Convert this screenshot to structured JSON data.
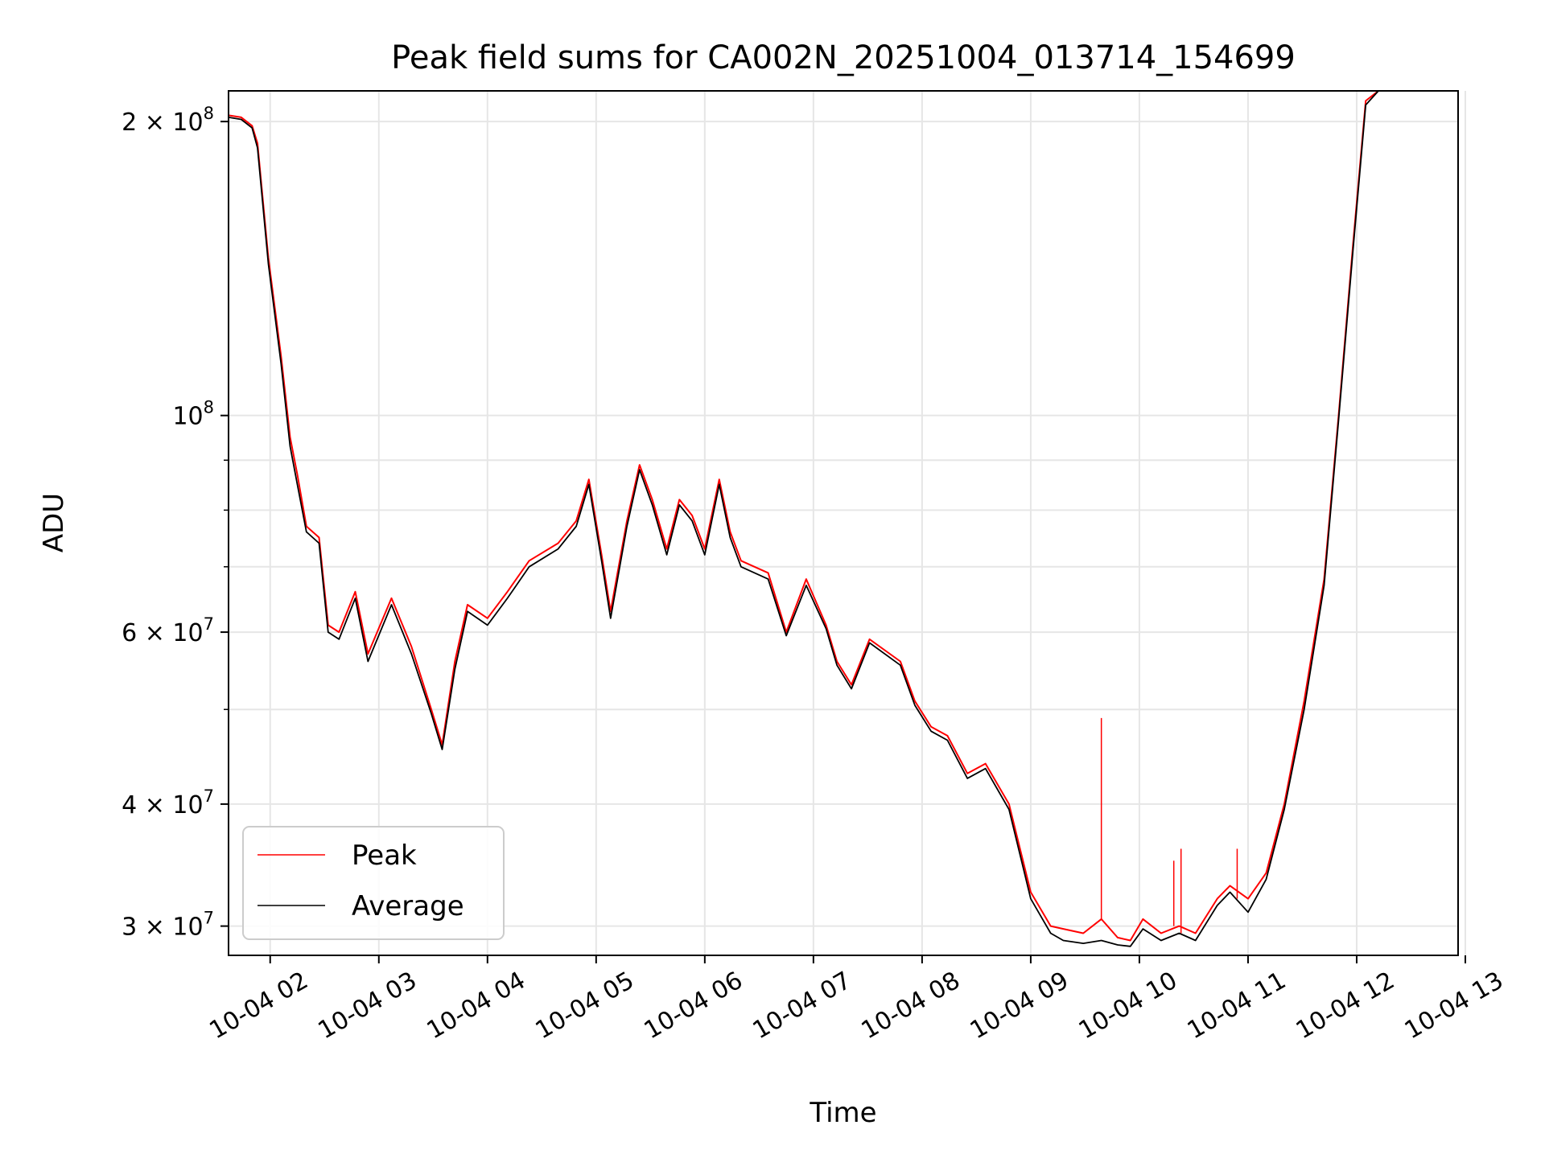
{
  "chart_data": {
    "type": "line",
    "title": "Peak field sums for CA002N_20251004_013714_154699",
    "xlabel": "Time",
    "ylabel": "ADU",
    "yscale": "log",
    "ylim": [
      28000000,
      215000000
    ],
    "xlim": [
      "2025-10-04 01:37",
      "2025-10-04 12:56"
    ],
    "grid": true,
    "legend_position": "lower-left",
    "x_tick_labels": [
      "10-04 02",
      "10-04 03",
      "10-04 04",
      "10-04 05",
      "10-04 06",
      "10-04 07",
      "10-04 08",
      "10-04 09",
      "10-04 10",
      "10-04 11",
      "10-04 12",
      "10-04 13"
    ],
    "x_ticks": [
      "2025-10-04 02:00",
      "2025-10-04 03:00",
      "2025-10-04 04:00",
      "2025-10-04 05:00",
      "2025-10-04 06:00",
      "2025-10-04 07:00",
      "2025-10-04 08:00",
      "2025-10-04 09:00",
      "2025-10-04 10:00",
      "2025-10-04 11:00",
      "2025-10-04 12:00",
      "2025-10-04 13:00"
    ],
    "y_major_ticks": [
      {
        "value": 30000000,
        "mantissa": "3",
        "exp": "7"
      },
      {
        "value": 40000000,
        "mantissa": "4",
        "exp": "7"
      },
      {
        "value": 60000000,
        "mantissa": "6",
        "exp": "7"
      },
      {
        "value": 100000000,
        "mantissa": "",
        "exp": "8"
      },
      {
        "value": 200000000,
        "mantissa": "2",
        "exp": "8"
      }
    ],
    "y_minor_ticks": [
      50000000,
      70000000,
      80000000,
      90000000
    ],
    "x": [
      "2025-10-04 01:37",
      "2025-10-04 01:44",
      "2025-10-04 01:50",
      "2025-10-04 01:53",
      "2025-10-04 01:59",
      "2025-10-04 02:06",
      "2025-10-04 02:11",
      "2025-10-04 02:15",
      "2025-10-04 02:20",
      "2025-10-04 02:27",
      "2025-10-04 02:32",
      "2025-10-04 02:38",
      "2025-10-04 02:47",
      "2025-10-04 02:54",
      "2025-10-04 03:07",
      "2025-10-04 03:18",
      "2025-10-04 03:29",
      "2025-10-04 03:35",
      "2025-10-04 03:42",
      "2025-10-04 03:49",
      "2025-10-04 04:00",
      "2025-10-04 04:11",
      "2025-10-04 04:23",
      "2025-10-04 04:39",
      "2025-10-04 04:49",
      "2025-10-04 04:56",
      "2025-10-04 05:03",
      "2025-10-04 05:08",
      "2025-10-04 05:17",
      "2025-10-04 05:24",
      "2025-10-04 05:31",
      "2025-10-04 05:39",
      "2025-10-04 05:46",
      "2025-10-04 05:53",
      "2025-10-04 06:00",
      "2025-10-04 06:08",
      "2025-10-04 06:14",
      "2025-10-04 06:20",
      "2025-10-04 06:35",
      "2025-10-04 06:45",
      "2025-10-04 06:56",
      "2025-10-04 07:07",
      "2025-10-04 07:13",
      "2025-10-04 07:21",
      "2025-10-04 07:31",
      "2025-10-04 07:48",
      "2025-10-04 07:56",
      "2025-10-04 08:05",
      "2025-10-04 08:14",
      "2025-10-04 08:25",
      "2025-10-04 08:35",
      "2025-10-04 08:48",
      "2025-10-04 09:00",
      "2025-10-04 09:11",
      "2025-10-04 09:18",
      "2025-10-04 09:29",
      "2025-10-04 09:39",
      "2025-10-04 09:48",
      "2025-10-04 09:55",
      "2025-10-04 10:02",
      "2025-10-04 10:12",
      "2025-10-04 10:22",
      "2025-10-04 10:31",
      "2025-10-04 10:43",
      "2025-10-04 10:50",
      "2025-10-04 11:00",
      "2025-10-04 11:10",
      "2025-10-04 11:20",
      "2025-10-04 11:31",
      "2025-10-04 11:42",
      "2025-10-04 11:50",
      "2025-10-04 11:58",
      "2025-10-04 12:05",
      "2025-10-04 12:12",
      "2025-10-04 12:18",
      "2025-10-04 12:25",
      "2025-10-04 12:33",
      "2025-10-04 12:38",
      "2025-10-04 12:45",
      "2025-10-04 12:51",
      "2025-10-04 12:56"
    ],
    "series": [
      {
        "name": "Peak",
        "color": "#ff0000",
        "values": [
          203000000,
          202000000,
          198000000,
          190000000,
          145000000,
          115000000,
          95000000,
          87000000,
          77000000,
          75000000,
          61000000,
          60000000,
          66000000,
          57000000,
          65000000,
          58000000,
          50000000,
          46000000,
          56000000,
          64000000,
          62000000,
          66000000,
          71000000,
          74000000,
          78000000,
          86000000,
          72000000,
          63000000,
          78000000,
          89000000,
          82000000,
          73000000,
          82000000,
          79000000,
          73000000,
          86000000,
          76000000,
          71000000,
          69000000,
          60000000,
          68000000,
          61000000,
          56000000,
          53000000,
          59000000,
          56000000,
          51000000,
          48000000,
          47000000,
          43000000,
          44000000,
          40000000,
          32500000,
          30000000,
          29800000,
          29500000,
          30500000,
          29200000,
          29000000,
          30500000,
          29500000,
          30000000,
          29500000,
          32000000,
          33000000,
          32000000,
          34000000,
          40000000,
          51000000,
          68000000,
          100000000,
          150000000,
          210000000,
          215000000,
          215000000,
          215000000,
          215000000,
          215000000,
          215000000,
          215000000,
          215000000
        ]
      },
      {
        "name": "Average",
        "color": "#000000",
        "values": [
          202000000,
          201000000,
          197000000,
          188000000,
          143000000,
          113000000,
          93000000,
          85000000,
          76000000,
          74000000,
          60000000,
          59000000,
          65000000,
          56000000,
          64000000,
          57000000,
          49500000,
          45500000,
          55000000,
          63000000,
          61000000,
          65000000,
          70000000,
          73000000,
          77000000,
          85000000,
          71000000,
          62000000,
          77000000,
          88000000,
          81000000,
          72000000,
          81000000,
          78000000,
          72000000,
          85000000,
          75000000,
          70000000,
          68000000,
          59500000,
          67000000,
          60500000,
          55500000,
          52500000,
          58500000,
          55500000,
          50500000,
          47500000,
          46500000,
          42500000,
          43500000,
          39500000,
          32000000,
          29500000,
          29000000,
          28800000,
          29000000,
          28700000,
          28600000,
          29800000,
          29000000,
          29500000,
          29000000,
          31500000,
          32500000,
          31000000,
          33500000,
          39500000,
          50000000,
          67000000,
          99000000,
          148000000,
          208000000,
          215000000,
          215000000,
          215000000,
          215000000,
          215000000,
          215000000,
          215000000,
          215000000
        ]
      }
    ],
    "spikes": [
      {
        "series": "Peak",
        "x": "2025-10-04 09:39",
        "y": 49000000
      },
      {
        "series": "Peak",
        "x": "2025-10-04 10:19",
        "y": 35000000
      },
      {
        "series": "Peak",
        "x": "2025-10-04 10:23",
        "y": 36000000
      },
      {
        "series": "Peak",
        "x": "2025-10-04 10:54",
        "y": 36000000
      }
    ]
  }
}
